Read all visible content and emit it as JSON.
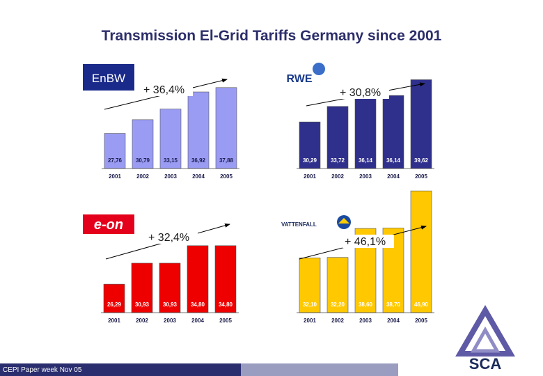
{
  "title": "Transmission El-Grid Tariffs Germany since 2001",
  "footer": "CEPI Paper week Nov 05",
  "brand": {
    "sca": "SCA"
  },
  "chart_data": [
    {
      "type": "bar",
      "company": "EnBW",
      "growth": "+ 36,4%",
      "color": "#9a9cf4",
      "categories": [
        "2001",
        "2002",
        "2003",
        "2004",
        "2005"
      ],
      "values": [
        27.76,
        30.79,
        33.15,
        36.92,
        37.88
      ],
      "labels": [
        "27,76",
        "30,79",
        "33,15",
        "36,92",
        "37,88"
      ]
    },
    {
      "type": "bar",
      "company": "RWE",
      "growth": "+ 30,8%",
      "color": "#2f2f8c",
      "categories": [
        "2001",
        "2002",
        "2003",
        "2004",
        "2005"
      ],
      "values": [
        30.29,
        33.72,
        36.14,
        36.14,
        39.62
      ],
      "labels": [
        "30,29",
        "33,72",
        "36,14",
        "36,14",
        "39,62"
      ]
    },
    {
      "type": "bar",
      "company": "e-on",
      "growth": "+ 32,4%",
      "color": "#ee0000",
      "categories": [
        "2001",
        "2002",
        "2003",
        "2004",
        "2005"
      ],
      "values": [
        26.29,
        30.93,
        30.93,
        34.8,
        34.8
      ],
      "labels": [
        "26,29",
        "30,93",
        "30,93",
        "34,80",
        "34,80"
      ]
    },
    {
      "type": "bar",
      "company": "VATTENFALL",
      "growth": "+ 46,1%",
      "color": "#ffc800",
      "categories": [
        "2001",
        "2002",
        "2003",
        "2004",
        "2005"
      ],
      "values": [
        32.1,
        32.2,
        38.6,
        38.7,
        46.9
      ],
      "labels": [
        "32,10",
        "32,20",
        "38,60",
        "38,70",
        "46,90"
      ]
    }
  ]
}
